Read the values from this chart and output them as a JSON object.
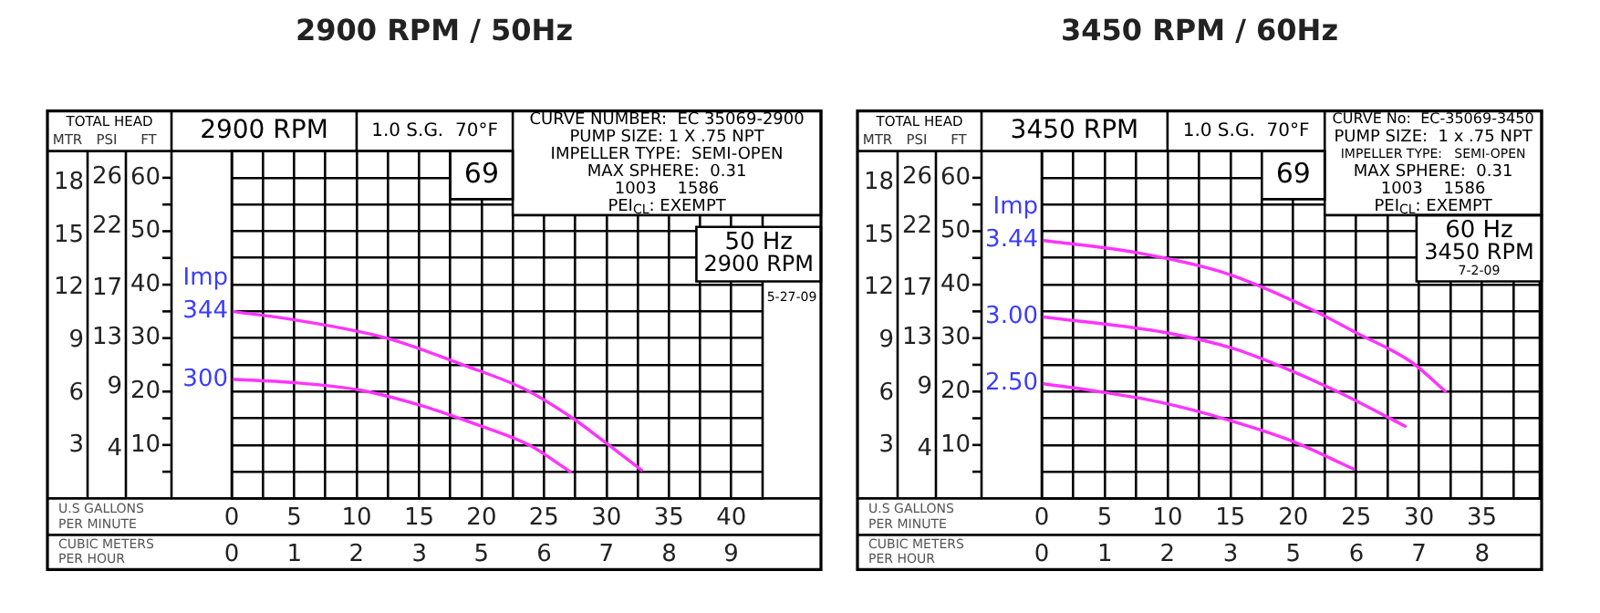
{
  "chart_data": [
    {
      "type": "line",
      "title": "2900 RPM / 50Hz",
      "xlabel": "U.S GALLONS PER MINUTE",
      "x2label": "CUBIC METERS PER HOUR",
      "ylabel": "FT",
      "y2label": "PSI",
      "y3label": "MTR",
      "annotations": [
        "TOTAL HEAD",
        "2900 RPM",
        "1.0 S.G.  70°F",
        "69",
        "CURVE NUMBER:  EC 35069-2900",
        "PUMP SIZE: 1 X .75 NPT",
        "IMPELLER TYPE:  SEMI-OPEN",
        "MAX SPHERE:  0.31",
        "1003    1586",
        "PEI$_{CL}$: EXEMPT",
        "50 Hz",
        "2900 RPM",
        "5-27-09",
        "Imp"
      ],
      "series": [
        {
          "name": "344",
          "color": "#ff33ff",
          "x": [
            0,
            4.8,
            12.4,
            18.5,
            23.4,
            27.3,
            29.9,
            32.8
          ],
          "values": [
            35,
            33.5,
            30,
            25,
            20.5,
            15,
            10.5,
            5.3
          ]
        },
        {
          "name": "300",
          "color": "#ff33ff",
          "x": [
            0,
            4.8,
            10.2,
            15,
            19.4,
            23.8,
            27.1
          ],
          "values": [
            22.3,
            21.7,
            20.3,
            17.5,
            14,
            10,
            5
          ]
        }
      ],
      "xlim": [
        0,
        42.5
      ],
      "xticks": [
        0,
        {
          "value": 2.5,
          "label": null
        },
        5,
        {
          "value": 7.5,
          "label": null
        },
        10,
        {
          "value": 12.5,
          "label": null
        },
        15,
        {
          "value": 17.5,
          "label": null
        },
        20,
        {
          "value": 22.5,
          "label": null
        },
        25,
        {
          "value": 27.5,
          "label": null
        },
        30,
        {
          "value": 32.5,
          "label": null
        },
        35,
        {
          "value": 37.5,
          "label": null
        },
        40
      ],
      "x2lim": [
        0,
        9.65
      ],
      "x2ticks": [
        0,
        {
          "value": 1.14,
          "label": "1"
        },
        {
          "value": 2.27,
          "label": "2"
        },
        {
          "value": 3.41,
          "label": "3"
        },
        {
          "value": 4.54,
          "label": "5"
        },
        {
          "value": 5.68,
          "label": "6"
        },
        {
          "value": 6.81,
          "label": "7"
        },
        {
          "value": 7.95,
          "label": "8"
        },
        {
          "value": 9.08,
          "label": "9"
        }
      ],
      "ylim": [
        0,
        65
      ],
      "yticks": [
        {
          "value": 5,
          "label": null
        },
        10,
        {
          "value": 15,
          "label": null
        },
        20,
        {
          "value": 25,
          "label": null
        },
        30,
        {
          "value": 35,
          "label": null
        },
        40,
        {
          "value": 45,
          "label": null
        },
        50,
        {
          "value": 55,
          "label": null
        },
        60
      ],
      "y2lim": [
        0,
        28.1
      ],
      "y2ticks": [
        4,
        9,
        13,
        17,
        22,
        26
      ],
      "y3lim": [
        0,
        19.81
      ],
      "y3ticks": [
        3,
        6,
        9,
        12,
        15,
        18
      ],
      "grid": true,
      "marker": "none",
      "line_style": "solid"
    },
    {
      "type": "line",
      "title": "3450 RPM / 60Hz",
      "xlabel": "U.S GALLONS PER MINUTE",
      "x2label": "CUBIC METERS PER HOUR",
      "ylabel": "FT",
      "y2label": "PSI",
      "y3label": "MTR",
      "annotations": [
        "TOTAL HEAD",
        "3450 RPM",
        "1.0 S.G.  70°F",
        "69",
        "CURVE No:  EC-35069-3450",
        "PUMP SIZE:  1 x .75 NPT",
        "IMPELLER TYPE:   SEMI-OPEN",
        "MAX SPHERE:  0.31",
        "1003    1586",
        "PEI$_{CL}$: EXEMPT",
        "60 Hz",
        "3450 RPM",
        "7-2-09",
        "Imp"
      ],
      "series": [
        {
          "name": "3.44",
          "color": "#ff33ff",
          "x": [
            0,
            7.5,
            14.8,
            21.6,
            25,
            29.4,
            32.1
          ],
          "values": [
            48.3,
            46,
            42,
            35.2,
            31,
            25.5,
            20
          ]
        },
        {
          "name": "3.00",
          "color": "#ff33ff",
          "x": [
            0,
            9.9,
            15.3,
            18.7,
            23.5,
            28.9
          ],
          "values": [
            34,
            31,
            28,
            25,
            20,
            13.5
          ]
        },
        {
          "name": "2.50",
          "color": "#ff33ff",
          "x": [
            0,
            4.5,
            9.4,
            14.8,
            19.6,
            24.8
          ],
          "values": [
            21.5,
            20,
            18,
            14.7,
            11,
            5.5
          ]
        }
      ],
      "xlim": [
        0,
        39.6
      ],
      "xticks": [
        0,
        {
          "value": 2.5,
          "label": null
        },
        5,
        {
          "value": 7.5,
          "label": null
        },
        10,
        {
          "value": 12.5,
          "label": null
        },
        15,
        {
          "value": 17.5,
          "label": null
        },
        20,
        {
          "value": 22.5,
          "label": null
        },
        25,
        {
          "value": 27.5,
          "label": null
        },
        30,
        {
          "value": 32.5,
          "label": null
        },
        35,
        {
          "value": 37.5,
          "label": null
        }
      ],
      "x2lim": [
        0,
        8.99
      ],
      "x2ticks": [
        0,
        {
          "value": 1.14,
          "label": "1"
        },
        {
          "value": 2.27,
          "label": "2"
        },
        {
          "value": 3.41,
          "label": "3"
        },
        {
          "value": 4.54,
          "label": "5"
        },
        {
          "value": 5.68,
          "label": "6"
        },
        {
          "value": 6.81,
          "label": "7"
        },
        {
          "value": 7.95,
          "label": "8"
        }
      ],
      "ylim": [
        0,
        65
      ],
      "yticks": [
        {
          "value": 5,
          "label": null
        },
        10,
        {
          "value": 15,
          "label": null
        },
        20,
        {
          "value": 25,
          "label": null
        },
        30,
        {
          "value": 35,
          "label": null
        },
        40,
        {
          "value": 45,
          "label": null
        },
        50,
        {
          "value": 55,
          "label": null
        },
        60
      ],
      "y2lim": [
        0,
        28.1
      ],
      "y2ticks": [
        4,
        9,
        13,
        17,
        22,
        26
      ],
      "y3lim": [
        0,
        19.81
      ],
      "y3ticks": [
        3,
        6,
        9,
        12,
        15,
        18
      ],
      "grid": true,
      "marker": "none",
      "line_style": "solid"
    }
  ]
}
